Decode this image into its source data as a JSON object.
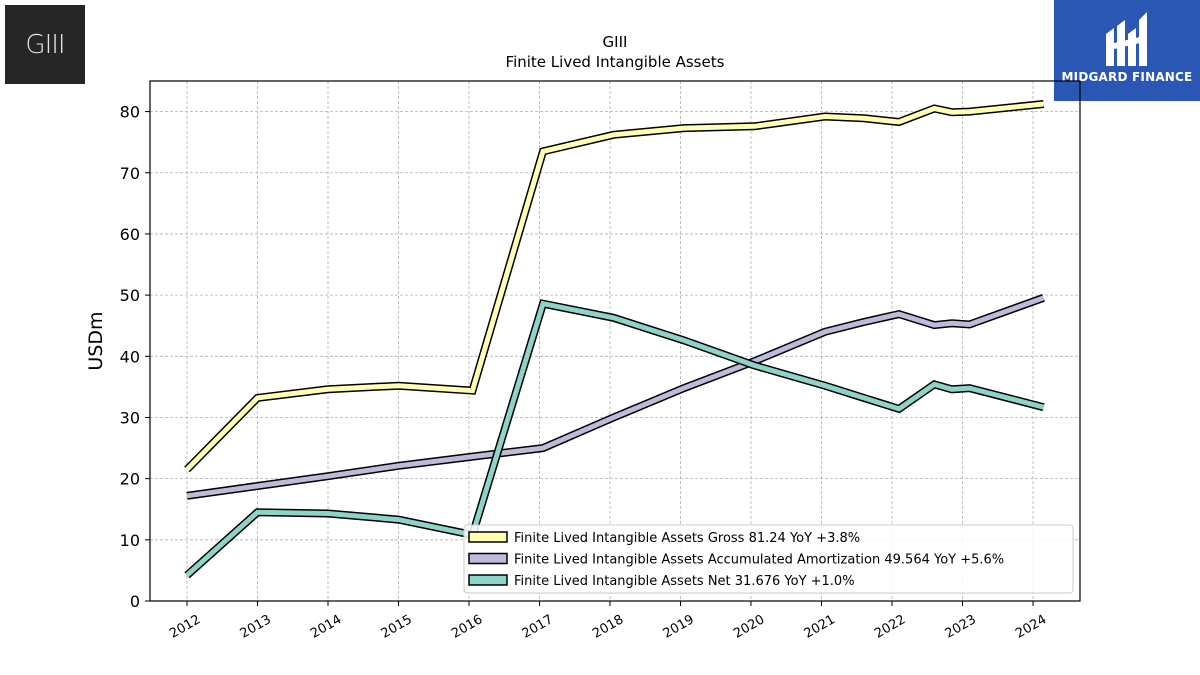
{
  "header": {
    "title_line1": "GIII",
    "title_line2": "Finite Lived Intangible Assets"
  },
  "logos": {
    "left_text": "GIII",
    "right_text": "MIDGARD FINANCE"
  },
  "chart_data": {
    "type": "line",
    "title": "GIII\nFinite Lived Intangible Assets",
    "xlabel": "",
    "ylabel": "USDm",
    "ylim": [
      0,
      85
    ],
    "yticks": [
      0,
      10,
      20,
      30,
      40,
      50,
      60,
      70,
      80
    ],
    "xticks": [
      "2012",
      "2013",
      "2014",
      "2015",
      "2016",
      "2017",
      "2018",
      "2019",
      "2020",
      "2021",
      "2022",
      "2023",
      "2024"
    ],
    "grid": true,
    "legend_position": "lower-right",
    "series": [
      {
        "name": "Finite Lived Intangible Assets Gross",
        "legend": "Finite Lived Intangible Assets Gross  81.24 YoY +3.8%",
        "color": "#ffffb3",
        "x": [
          2012.0,
          2013.0,
          2014.0,
          2015.0,
          2016.05,
          2017.05,
          2018.05,
          2019.05,
          2020.05,
          2021.05,
          2021.6,
          2022.1,
          2022.6,
          2022.85,
          2023.1,
          2024.15
        ],
        "y": [
          21.5,
          33.2,
          34.6,
          35.2,
          34.4,
          73.5,
          76.2,
          77.3,
          77.6,
          79.2,
          78.9,
          78.3,
          80.5,
          79.9,
          80.0,
          81.24
        ]
      },
      {
        "name": "Finite Lived Intangible Assets Accumulated Amortization",
        "legend": "Finite Lived Intangible Assets Accumulated Amortization  49.564 YoY +5.6%",
        "color": "#bebada",
        "x": [
          2012.0,
          2013.0,
          2014.0,
          2015.0,
          2016.05,
          2017.05,
          2018.05,
          2019.05,
          2020.05,
          2021.05,
          2021.6,
          2022.1,
          2022.6,
          2022.85,
          2023.1,
          2024.15
        ],
        "y": [
          17.2,
          18.8,
          20.4,
          22.1,
          23.6,
          25.0,
          30.0,
          34.8,
          39.2,
          44.0,
          45.6,
          46.9,
          45.1,
          45.4,
          45.2,
          49.564
        ]
      },
      {
        "name": "Finite Lived Intangible Assets Net",
        "legend": "Finite Lived Intangible Assets Net  31.676 YoY +1.0%",
        "color": "#8dd3c7",
        "x": [
          2012.0,
          2013.0,
          2014.0,
          2015.0,
          2016.05,
          2017.05,
          2018.05,
          2019.05,
          2020.05,
          2021.05,
          2021.6,
          2022.1,
          2022.6,
          2022.85,
          2023.1,
          2024.15
        ],
        "y": [
          4.2,
          14.5,
          14.3,
          13.3,
          10.8,
          48.6,
          46.3,
          42.6,
          38.5,
          35.2,
          33.2,
          31.4,
          35.4,
          34.6,
          34.8,
          31.676
        ]
      }
    ]
  }
}
